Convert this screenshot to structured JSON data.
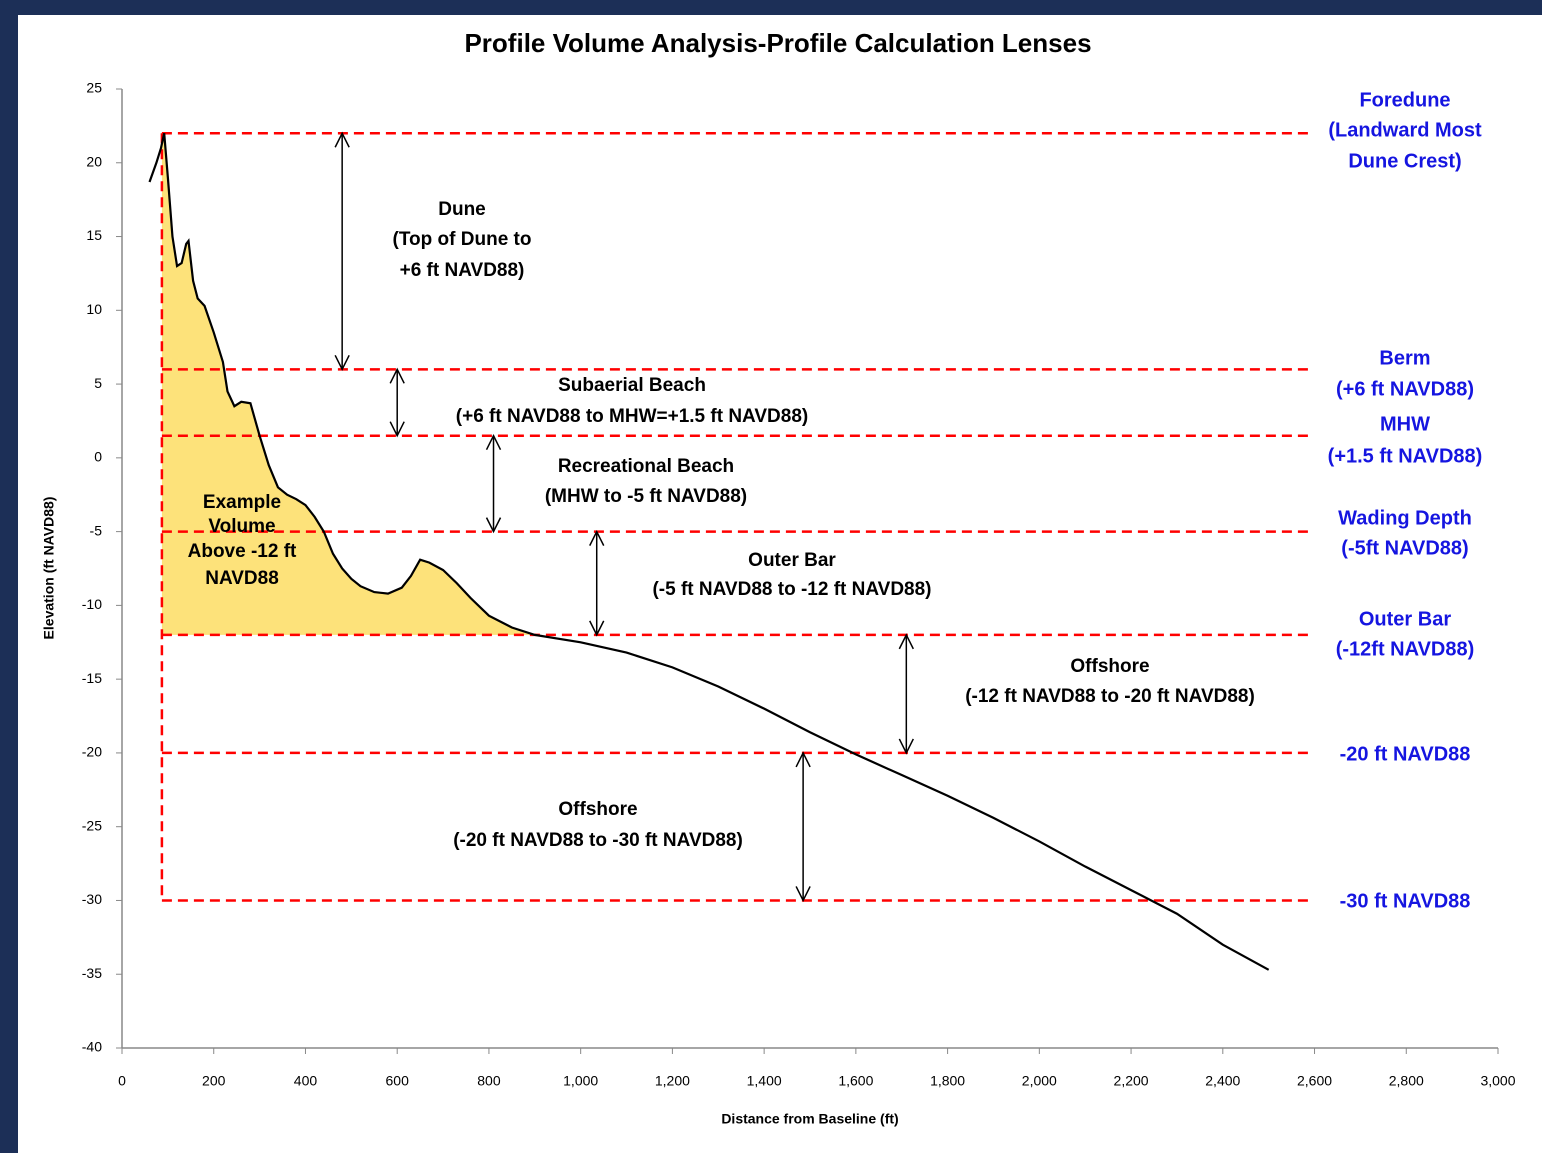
{
  "chart_data": {
    "type": "line",
    "title": "Profile Volume Analysis-Profile Calculation Lenses",
    "x_label": "Distance from Baseline (ft)",
    "y_label": "Elevation (ft NAVD88)",
    "xlim": [
      0,
      3000
    ],
    "ylim": [
      -40,
      25
    ],
    "xticks": [
      0,
      200,
      400,
      600,
      800,
      {
        "value": 1000,
        "label": "1,000"
      },
      {
        "value": 1200,
        "label": "1,200"
      },
      {
        "value": 1400,
        "label": "1,400"
      },
      {
        "value": 1600,
        "label": "1,600"
      },
      {
        "value": 1800,
        "label": "1,800"
      },
      {
        "value": 2000,
        "label": "2,000"
      },
      {
        "value": 2200,
        "label": "2,200"
      },
      {
        "value": 2400,
        "label": "2,400"
      },
      {
        "value": 2600,
        "label": "2,600"
      },
      {
        "value": 2800,
        "label": "2,800"
      },
      {
        "value": 3000,
        "label": "3,000"
      }
    ],
    "yticks": [
      -40,
      -35,
      -30,
      -25,
      -20,
      -15,
      -10,
      -5,
      0,
      5,
      10,
      15,
      20,
      25
    ],
    "color": "#000000",
    "fill_color": "#fde27a",
    "x": [
      60,
      75,
      85,
      92,
      100,
      110,
      120,
      130,
      140,
      145,
      155,
      165,
      180,
      200,
      220,
      230,
      245,
      260,
      280,
      300,
      320,
      340,
      360,
      380,
      400,
      420,
      440,
      460,
      480,
      500,
      520,
      550,
      580,
      610,
      630,
      650,
      670,
      700,
      730,
      760,
      800,
      850,
      900,
      1000,
      1100,
      1200,
      1300,
      1400,
      1500,
      1600,
      1700,
      1800,
      1900,
      2000,
      2100,
      2200,
      2300,
      2400,
      2500
    ],
    "values": [
      18.7,
      20,
      21,
      22,
      19,
      15,
      13,
      13.2,
      14.5,
      14.7,
      12,
      10.8,
      10.3,
      8.5,
      6.5,
      4.5,
      3.5,
      3.8,
      3.7,
      1.5,
      -0.5,
      -2,
      -2.5,
      -2.8,
      -3.2,
      -4,
      -5,
      -6.5,
      -7.5,
      -8.2,
      -8.7,
      -9.1,
      -9.2,
      -8.8,
      -8,
      -6.9,
      -7.1,
      -7.6,
      -8.5,
      -9.5,
      -10.7,
      -11.5,
      -12,
      -12.5,
      -13.2,
      -14.2,
      -15.5,
      -17,
      -18.6,
      -20.1,
      -21.5,
      -22.9,
      -24.4,
      -26,
      -27.7,
      -29.3,
      -30.9,
      -33,
      -34.7
    ],
    "lens_color": "#ff0000",
    "lens_x": 87,
    "lens_end_x": 2590,
    "lenses": [
      {
        "y": 22,
        "label": [
          "Foredune",
          "(Landward Most",
          "Dune Crest)"
        ]
      },
      {
        "y": 6,
        "label": [
          "Berm",
          "(+6 ft NAVD88)"
        ]
      },
      {
        "y": 1.5,
        "label": [
          "MHW",
          "(+1.5 ft NAVD88)"
        ]
      },
      {
        "y": -5,
        "label": [
          "Wading Depth",
          "(-5ft NAVD88)"
        ]
      },
      {
        "y": -12,
        "label": [
          "Outer Bar",
          "(-12ft NAVD88)"
        ]
      },
      {
        "y": -20,
        "label": [
          "-20 ft NAVD88"
        ]
      },
      {
        "y": -30,
        "label": [
          "-30 ft NAVD88"
        ]
      }
    ],
    "arrows": [
      {
        "x": 480,
        "from": 22,
        "to": 6
      },
      {
        "x": 600,
        "from": 6,
        "to": 1.5
      },
      {
        "x": 810,
        "from": 1.5,
        "to": -5
      },
      {
        "x": 1035,
        "from": -5,
        "to": -12
      },
      {
        "x": 1710,
        "from": -12,
        "to": -20
      },
      {
        "x": 1485,
        "from": -20,
        "to": -30
      }
    ],
    "annotations": [
      [
        "Dune",
        "(Top of Dune to",
        "+6 ft NAVD88)"
      ],
      [
        "Subaerial Beach",
        "(+6 ft NAVD88 to MHW=+1.5 ft NAVD88)"
      ],
      [
        "Recreational Beach",
        "(MHW to -5 ft NAVD88)"
      ],
      [
        "Outer Bar",
        "(-5 ft NAVD88 to -12 ft NAVD88)"
      ],
      [
        "Offshore",
        "(-12 ft NAVD88 to -20 ft NAVD88)"
      ],
      [
        "Offshore",
        "(-20 ft NAVD88 to -30 ft NAVD88)"
      ],
      [
        "Example",
        "Volume",
        "Above -12 ft",
        "NAVD88"
      ]
    ]
  }
}
